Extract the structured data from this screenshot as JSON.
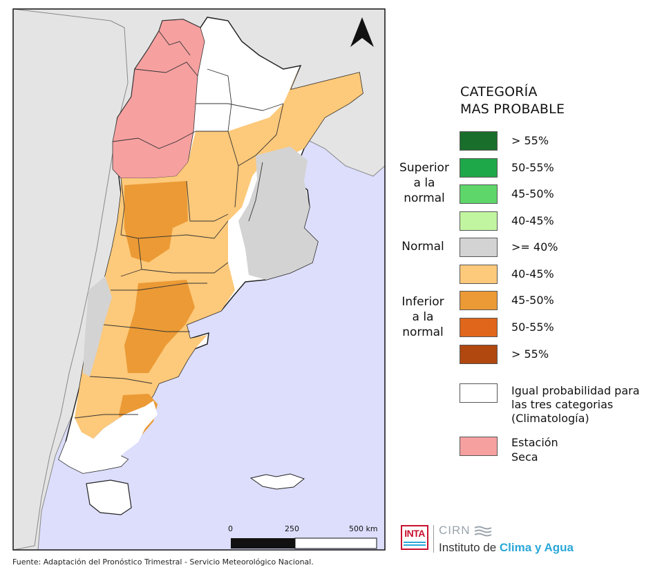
{
  "legend": {
    "title_line1": "CATEGORÍA",
    "title_line2": "MAS PROBABLE",
    "groups": {
      "superior": [
        "Superior",
        "a la",
        "normal"
      ],
      "normal": "Normal",
      "inferior": [
        "Inferior",
        "a la",
        "normal"
      ]
    },
    "items": [
      {
        "label": "> 55%",
        "color": "#1a6e2b"
      },
      {
        "label": "50-55%",
        "color": "#1fa84a"
      },
      {
        "label": "45-50%",
        "color": "#5ed66a"
      },
      {
        "label": "40-45%",
        "color": "#c2f5a0"
      },
      {
        "label": ">= 40%",
        "color": "#d3d3d3"
      },
      {
        "label": "40-45%",
        "color": "#fdc97a"
      },
      {
        "label": "45-50%",
        "color": "#eb9a35"
      },
      {
        "label": "50-55%",
        "color": "#e0661b"
      },
      {
        "label": "> 55%",
        "color": "#b0480f"
      }
    ],
    "equal_prob": [
      "Igual probabilidad para",
      "las tres categorias",
      "(Climatología)"
    ],
    "equal_prob_color": "#ffffff",
    "dry_season": [
      "Estación",
      "Seca"
    ],
    "dry_season_color": "#f6a0a0"
  },
  "scale": {
    "labels": [
      "0",
      "250",
      "500 km"
    ]
  },
  "north_arrow_icon": "north-arrow-icon",
  "source": "Fuente: Adaptación del Pronóstico Trimestral - Servicio Meteorológico Nacional.",
  "logos": {
    "inta": "INTA",
    "cirn": "CIRN",
    "institute_prefix": "Instituto de ",
    "institute_highlight": "Clima y Agua"
  },
  "colors": {
    "ocean": "#dcdefc",
    "neighbors": "#e4e4e4",
    "border": "#111111"
  }
}
